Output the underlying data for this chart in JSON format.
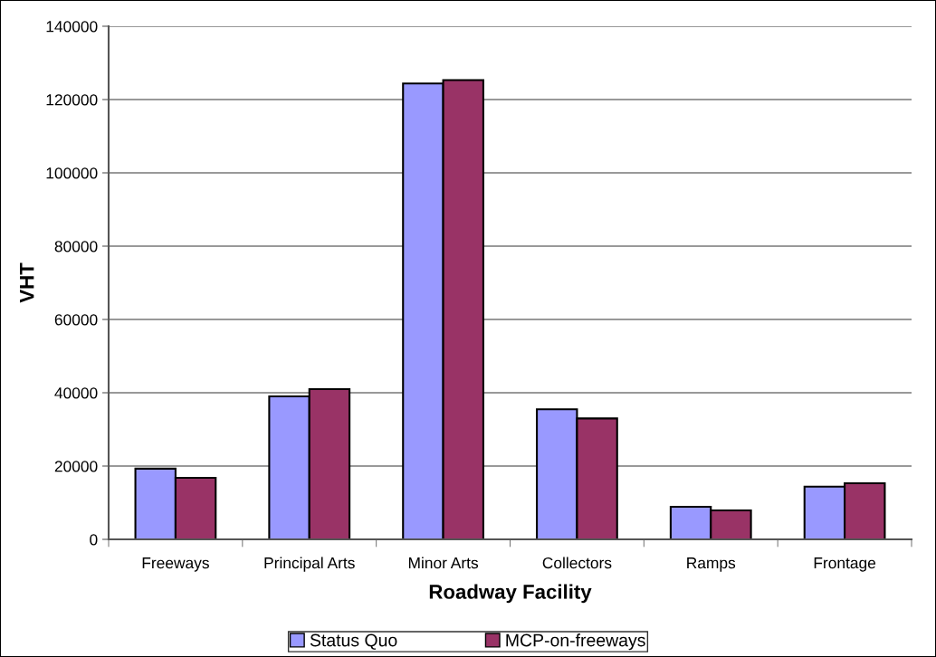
{
  "chart_data": {
    "type": "bar",
    "xlabel": "Roadway Facility",
    "ylabel": "VHT",
    "categories": [
      "Freeways",
      "Principal Arts",
      "Minor Arts",
      "Collectors",
      "Ramps",
      "Frontage"
    ],
    "series": [
      {
        "name": "Status Quo",
        "color": "#9999ff",
        "values": [
          19300,
          39000,
          124400,
          35500,
          8900,
          14400
        ]
      },
      {
        "name": "MCP-on-freeways",
        "color": "#993366",
        "values": [
          16800,
          41000,
          125300,
          33000,
          7900,
          15300
        ]
      }
    ],
    "ylim": [
      0,
      140000
    ],
    "yticks": [
      0,
      20000,
      40000,
      60000,
      80000,
      100000,
      120000,
      140000
    ],
    "grid": "y",
    "legend": "bottom"
  }
}
